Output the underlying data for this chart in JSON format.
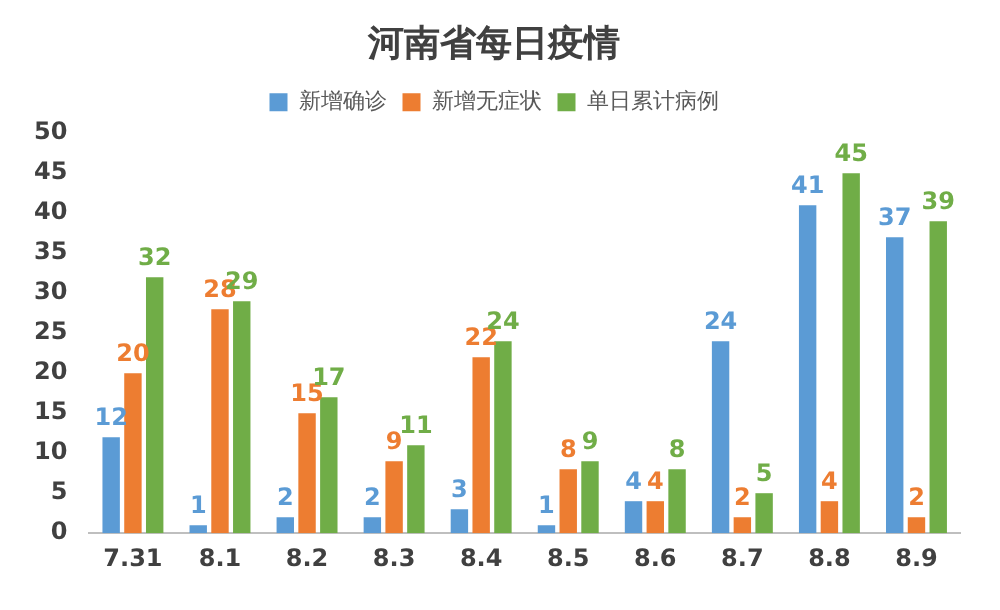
{
  "chart_data": {
    "type": "bar",
    "title": "河南省每日疫情",
    "categories": [
      "7.31",
      "8.1",
      "8.2",
      "8.3",
      "8.4",
      "8.5",
      "8.6",
      "8.7",
      "8.8",
      "8.9"
    ],
    "series": [
      {
        "name": "新增确诊",
        "color": "#5b9bd5",
        "values": [
          12,
          1,
          2,
          2,
          3,
          1,
          4,
          24,
          41,
          37
        ]
      },
      {
        "name": "新增无症状",
        "color": "#ed7d31",
        "values": [
          20,
          28,
          15,
          9,
          22,
          8,
          4,
          2,
          4,
          2
        ]
      },
      {
        "name": "单日累计病例",
        "color": "#70ad47",
        "values": [
          32,
          29,
          17,
          11,
          24,
          9,
          8,
          5,
          45,
          39
        ]
      }
    ],
    "ylim": [
      0,
      50
    ],
    "yticks": [
      0,
      5,
      10,
      15,
      20,
      25,
      30,
      35,
      40,
      45,
      50
    ],
    "grid": false,
    "legend": "top",
    "data_labels": true
  }
}
